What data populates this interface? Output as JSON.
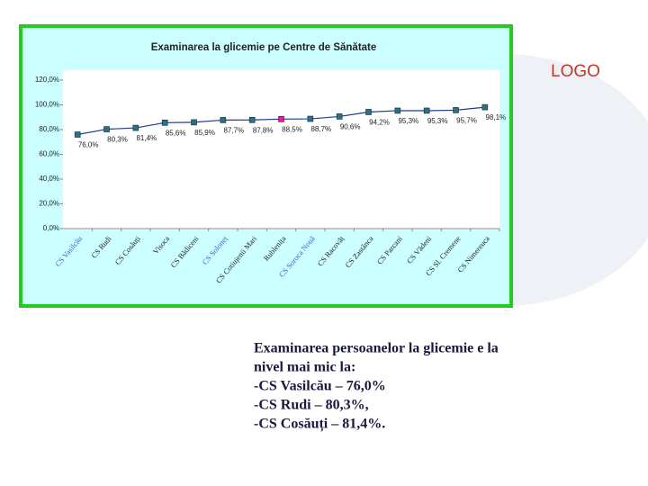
{
  "logo": "LOGO",
  "body_text": [
    "Examinarea persoanelor la glicemie e la",
    "nivel mai mic la:",
    "-CS Vasilcău – 76,0%",
    "-CS Rudi – 80,3%,",
    "-CS Cosăuți – 81,4%."
  ],
  "chart_data": {
    "type": "line",
    "title": "Examinarea la glicemie  pe Centre de Sănătate",
    "categories": [
      "CS Vasilcău",
      "CS Rudi",
      "CS Cosăuți",
      "Visoca",
      "CS Bădiceni",
      "CS Soloneț",
      "CS Cotiujenii Mari",
      "Rublenița",
      "CS Soroca Nouă",
      "CS Racovăț",
      "CS Zastânca",
      "CS Parcani",
      "CS Vădeni",
      "CS Sl. Cremene",
      "CS Nimereuca"
    ],
    "category_colors": [
      "#3366cc",
      "#222222",
      "#222222",
      "#222222",
      "#222222",
      "#3366cc",
      "#222222",
      "#222222",
      "#3366cc",
      "#222222",
      "#222222",
      "#222222",
      "#222222",
      "#222222",
      "#222222"
    ],
    "values": [
      76.0,
      80.3,
      81.4,
      85.6,
      85.9,
      87.7,
      87.8,
      88.5,
      88.7,
      90.6,
      94.2,
      95.3,
      95.3,
      95.7,
      98.1
    ],
    "value_labels": [
      "76,0%",
      "80,3%",
      "81,4%",
      "85,6%",
      "85,9%",
      "87,7%",
      "87,8%",
      "88,5%",
      "88,7%",
      "90,6%",
      "94,2%",
      "95,3%",
      "95,3%",
      "95,7%",
      "98,1%"
    ],
    "color": "#1f3a8a",
    "marker_colors": [
      "#2f6f80",
      "#2f6f80",
      "#2f6f80",
      "#2f6f80",
      "#2f6f80",
      "#2f6f80",
      "#2f6f80",
      "#e0209a",
      "#2f6f80",
      "#2f6f80",
      "#2f6f80",
      "#2f6f80",
      "#2f6f80",
      "#2f6f80",
      "#2f6f80"
    ],
    "ylim": [
      0,
      120
    ],
    "yticks": [
      {
        "value": 0,
        "label": "0,0%"
      },
      {
        "value": 20,
        "label": "20,0%"
      },
      {
        "value": 40,
        "label": "40,0%"
      },
      {
        "value": 60,
        "label": "60,0%"
      },
      {
        "value": 80,
        "label": "80,0%"
      },
      {
        "value": 100,
        "label": "100,0%"
      },
      {
        "value": 120,
        "label": "120,0%"
      }
    ]
  }
}
